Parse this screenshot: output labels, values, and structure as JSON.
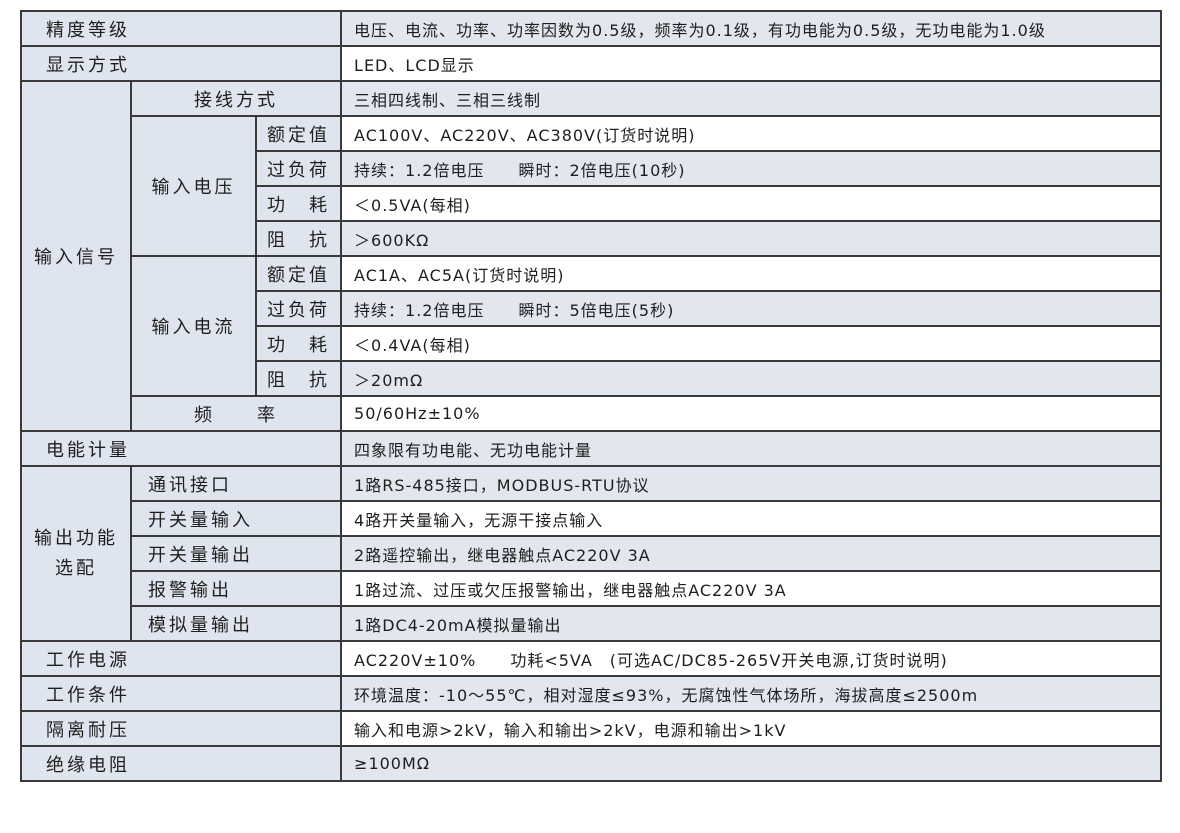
{
  "rows": [
    {
      "label": "精度等级",
      "value": "电压、电流、功率、功率因数为0.5级，频率为0.1级，有功电能为0.5级，无功电能为1.0级"
    },
    {
      "label": "显示方式",
      "value": "LED、LCD显示"
    },
    {
      "label": "接线方式",
      "value": "三相四线制、三相三线制"
    },
    {
      "label": "额定值",
      "value": "AC100V、AC220V、AC380V(订货时说明)"
    },
    {
      "label": "过负荷",
      "value": "持续：1.2倍电压　　瞬时：2倍电压(10秒)"
    },
    {
      "label": "功　耗",
      "value": "＜0.5VA(每相)"
    },
    {
      "label": "阻　抗",
      "value": "＞600KΩ"
    },
    {
      "label": "额定值",
      "value": "AC1A、AC5A(订货时说明)"
    },
    {
      "label": "过负荷",
      "value": "持续：1.2倍电压　　瞬时：5倍电压(5秒)"
    },
    {
      "label": "功　耗",
      "value": "＜0.4VA(每相)"
    },
    {
      "label": "阻　抗",
      "value": "＞20mΩ"
    },
    {
      "label": "频　　率",
      "value": "50/60Hz±10%"
    },
    {
      "label": "电能计量",
      "value": "四象限有功电能、无功电能计量"
    },
    {
      "label": "通讯接口",
      "value": "1路RS-485接口，MODBUS-RTU协议"
    },
    {
      "label": "开关量输入",
      "value": "4路开关量输入，无源干接点输入"
    },
    {
      "label": "开关量输出",
      "value": "2路遥控输出，继电器触点AC220V 3A"
    },
    {
      "label": "报警输出",
      "value": "1路过流、过压或欠压报警输出，继电器触点AC220V 3A"
    },
    {
      "label": "模拟量输出",
      "value": "1路DC4-20mA模拟量输出"
    },
    {
      "label": "工作电源",
      "value": "AC220V±10%　　功耗<5VA　(可选AC/DC85-265V开关电源,订货时说明)"
    },
    {
      "label": "工作条件",
      "value": "环境温度：-10～55℃，相对湿度≤93%，无腐蚀性气体场所，海拔高度≤2500m"
    },
    {
      "label": "隔离耐压",
      "value": "输入和电源>2kV，输入和输出>2kV，电源和输出>1kV"
    },
    {
      "label": "绝缘电阻",
      "value": "≥100MΩ"
    }
  ],
  "groups": {
    "input_signal": "输入信号",
    "input_voltage": "输入电压",
    "input_current": "输入电流",
    "output_options_line1": "输出功能",
    "output_options_line2": "选配"
  }
}
